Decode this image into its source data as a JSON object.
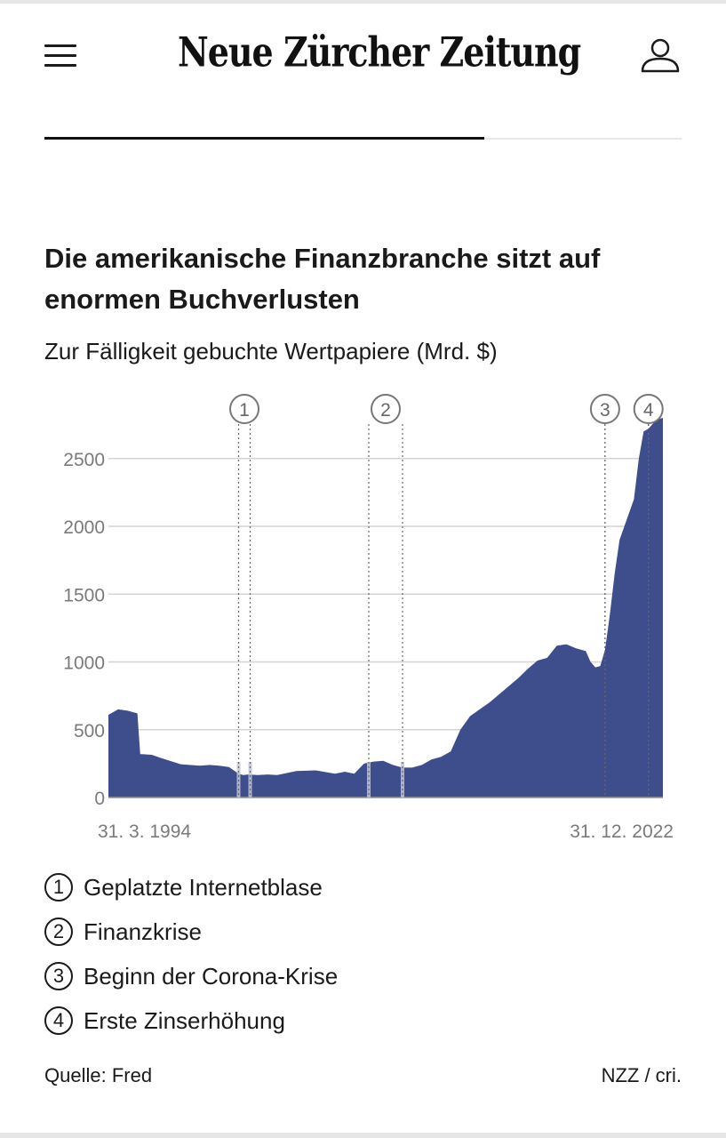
{
  "header": {
    "logo": "Neue Zürcher Zeitung",
    "reading_progress": 0.69
  },
  "article": {
    "title": "Die amerikanische Finanzbranche sitzt auf enormen Buchverlusten",
    "subtitle": "Zur Fälligkeit gebuchte Wertpapiere (Mrd. $)"
  },
  "chart_data": {
    "type": "area",
    "title": "Die amerikanische Finanzbranche sitzt auf enormen Buchverlusten",
    "subtitle": "Zur Fälligkeit gebuchte Wertpapiere (Mrd. $)",
    "xlabel": "",
    "ylabel": "Mrd. $",
    "x_start_label": "31. 3. 1994",
    "x_end_label": "31. 12. 2022",
    "xlim": [
      1994.25,
      2023.0
    ],
    "ylim": [
      0,
      2800
    ],
    "yticks": [
      0,
      500,
      1000,
      1500,
      2000,
      2500
    ],
    "color": "#3e4e8c",
    "series": [
      {
        "name": "Zur Fälligkeit gebuchte Wertpapiere",
        "x": [
          1994.25,
          1994.75,
          1995.25,
          1995.75,
          1995.9,
          1996.0,
          1996.5,
          1997.0,
          1998.0,
          1999.0,
          1999.5,
          2000.0,
          2000.5,
          2001.0,
          2001.25,
          2001.5,
          2002.0,
          2002.5,
          2003.0,
          2004.0,
          2005.0,
          2006.0,
          2006.5,
          2007.0,
          2007.5,
          2008.0,
          2008.5,
          2009.0,
          2009.5,
          2010.0,
          2010.5,
          2011.0,
          2011.5,
          2012.0,
          2012.5,
          2013.0,
          2013.5,
          2014.0,
          2014.5,
          2015.0,
          2015.5,
          2016.0,
          2016.5,
          2017.0,
          2017.5,
          2018.0,
          2018.5,
          2019.0,
          2019.25,
          2019.5,
          2019.75,
          2020.0,
          2020.25,
          2020.5,
          2020.75,
          2021.0,
          2021.25,
          2021.5,
          2021.75,
          2022.0,
          2022.25,
          2022.5,
          2022.75,
          2023.0
        ],
        "values": [
          610,
          650,
          640,
          620,
          320,
          320,
          315,
          290,
          245,
          235,
          240,
          235,
          225,
          175,
          165,
          170,
          165,
          170,
          165,
          195,
          200,
          175,
          190,
          175,
          250,
          265,
          270,
          240,
          220,
          220,
          240,
          280,
          300,
          340,
          500,
          600,
          650,
          700,
          760,
          820,
          880,
          950,
          1010,
          1030,
          1120,
          1130,
          1100,
          1080,
          1000,
          960,
          970,
          1090,
          1350,
          1650,
          1900,
          2000,
          2100,
          2200,
          2500,
          2700,
          2720,
          2760,
          2790,
          2800
        ]
      }
    ],
    "markers": [
      {
        "id": "1",
        "label": "Geplatzte Internetblase",
        "x_start": 2001.0,
        "x_end": 2001.6
      },
      {
        "id": "2",
        "label": "Finanzkrise",
        "x_start": 2007.75,
        "x_end": 2009.5
      },
      {
        "id": "3",
        "label": "Beginn der Corona-Krise",
        "x_start": 2020.0,
        "x_end": 2020.0
      },
      {
        "id": "4",
        "label": "Erste Zinserhöhung",
        "x_start": 2022.25,
        "x_end": 2022.25
      }
    ]
  },
  "legend": [
    {
      "num": "1",
      "label": "Geplatzte Internetblase"
    },
    {
      "num": "2",
      "label": "Finanzkrise"
    },
    {
      "num": "3",
      "label": "Beginn der Corona-Krise"
    },
    {
      "num": "4",
      "label": "Erste Zinserhöhung"
    }
  ],
  "footer": {
    "source": "Quelle: Fred",
    "credit": "NZZ / cri."
  }
}
